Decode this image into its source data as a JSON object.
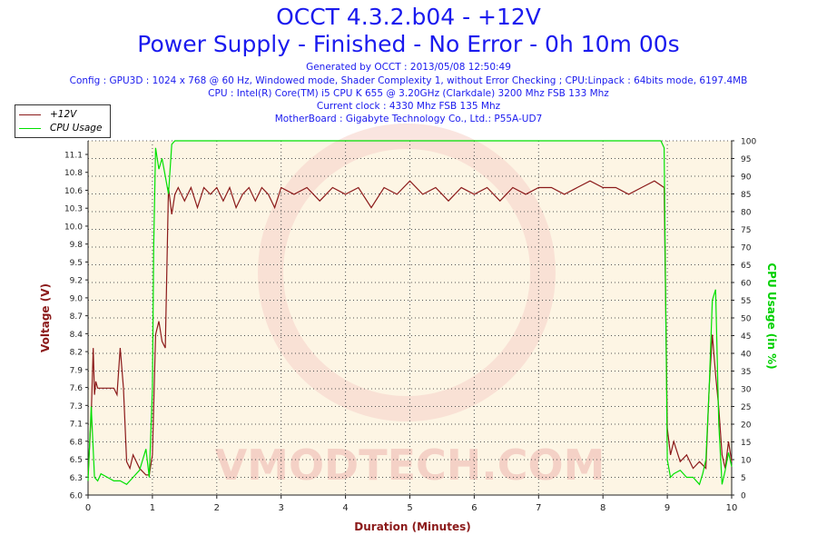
{
  "chart_data": {
    "type": "line",
    "title": "OCCT 4.3.2.b04 - +12V",
    "subtitle": "Power Supply - Finished - No Error - 0h 10m 00s",
    "info_lines": [
      "Generated by OCCT : 2013/05/08 12:50:49",
      "Config : GPU3D : 1024 x 768 @ 60 Hz, Windowed mode, Shader Complexity 1, without Error Checking ; CPU:Linpack : 64bits mode, 6197.4MB",
      "CPU : Intel(R) Core(TM) i5 CPU K 655 @ 3.20GHz (Clarkdale) 3200 Mhz FSB 133 Mhz",
      "Current clock : 4330 Mhz FSB 135 Mhz",
      "MotherBoard : Gigabyte Technology Co., Ltd.: P55A-UD7"
    ],
    "xlabel": "Duration (Minutes)",
    "ylabel": "Voltage (V)",
    "y2label": "CPU Usage (in %)",
    "xlim": [
      0,
      10
    ],
    "ylim": [
      6.0,
      11.3
    ],
    "y2lim": [
      0,
      100
    ],
    "x_ticks": [
      "0",
      "1",
      "2",
      "3",
      "4",
      "5",
      "6",
      "7",
      "8",
      "9",
      "10"
    ],
    "y_ticks": [
      "6.0",
      "6.3",
      "6.5",
      "6.8",
      "7.1",
      "7.3",
      "7.6",
      "7.9",
      "8.2",
      "8.4",
      "8.7",
      "9.0",
      "9.2",
      "9.5",
      "9.8",
      "10.0",
      "10.3",
      "10.6",
      "10.8",
      "11.1"
    ],
    "y2_ticks": [
      "0",
      "5",
      "10",
      "15",
      "20",
      "25",
      "30",
      "35",
      "40",
      "45",
      "50",
      "55",
      "60",
      "65",
      "70",
      "75",
      "80",
      "85",
      "90",
      "95",
      "100"
    ],
    "grid": true,
    "legend_position": "top-left",
    "watermark": "VMODTECH.COM",
    "series": [
      {
        "name": "+12V",
        "color": "#8b1a1a",
        "axis": "left",
        "x": [
          0.0,
          0.05,
          0.08,
          0.1,
          0.12,
          0.15,
          0.2,
          0.25,
          0.3,
          0.35,
          0.4,
          0.45,
          0.5,
          0.55,
          0.6,
          0.65,
          0.7,
          0.8,
          0.9,
          0.95,
          1.0,
          1.05,
          1.1,
          1.15,
          1.2,
          1.25,
          1.3,
          1.35,
          1.4,
          1.5,
          1.6,
          1.7,
          1.8,
          1.9,
          2.0,
          2.1,
          2.2,
          2.3,
          2.4,
          2.5,
          2.6,
          2.7,
          2.8,
          2.9,
          3.0,
          3.2,
          3.4,
          3.6,
          3.8,
          4.0,
          4.2,
          4.4,
          4.6,
          4.8,
          5.0,
          5.2,
          5.4,
          5.6,
          5.8,
          6.0,
          6.2,
          6.4,
          6.6,
          6.8,
          7.0,
          7.2,
          7.4,
          7.6,
          7.8,
          8.0,
          8.2,
          8.4,
          8.6,
          8.8,
          8.95,
          9.0,
          9.05,
          9.1,
          9.2,
          9.3,
          9.4,
          9.5,
          9.6,
          9.65,
          9.7,
          9.75,
          9.8,
          9.85,
          9.9,
          9.95,
          10.0
        ],
        "y": [
          6.3,
          7.2,
          8.2,
          7.5,
          7.7,
          7.6,
          7.6,
          7.6,
          7.6,
          7.6,
          7.6,
          7.5,
          8.2,
          7.6,
          6.5,
          6.4,
          6.6,
          6.4,
          6.3,
          6.3,
          6.6,
          8.4,
          8.6,
          8.3,
          8.2,
          10.6,
          10.2,
          10.5,
          10.6,
          10.4,
          10.6,
          10.3,
          10.6,
          10.5,
          10.6,
          10.4,
          10.6,
          10.3,
          10.5,
          10.6,
          10.4,
          10.6,
          10.5,
          10.3,
          10.6,
          10.5,
          10.6,
          10.4,
          10.6,
          10.5,
          10.6,
          10.3,
          10.6,
          10.5,
          10.7,
          10.5,
          10.6,
          10.4,
          10.6,
          10.5,
          10.6,
          10.4,
          10.6,
          10.5,
          10.6,
          10.6,
          10.5,
          10.6,
          10.7,
          10.6,
          10.6,
          10.5,
          10.6,
          10.7,
          10.6,
          7.0,
          6.6,
          6.8,
          6.5,
          6.6,
          6.4,
          6.5,
          6.4,
          7.6,
          8.4,
          7.8,
          7.3,
          6.6,
          6.4,
          6.8,
          6.5
        ]
      },
      {
        "name": "CPU Usage",
        "color": "#00e000",
        "axis": "right",
        "x": [
          0.0,
          0.05,
          0.1,
          0.15,
          0.2,
          0.3,
          0.4,
          0.5,
          0.6,
          0.7,
          0.8,
          0.9,
          0.95,
          1.0,
          1.02,
          1.05,
          1.1,
          1.15,
          1.2,
          1.25,
          1.3,
          1.35,
          1.4,
          2.0,
          3.0,
          4.0,
          5.0,
          6.0,
          7.0,
          8.0,
          8.9,
          8.95,
          9.0,
          9.05,
          9.1,
          9.2,
          9.3,
          9.4,
          9.5,
          9.55,
          9.6,
          9.65,
          9.7,
          9.75,
          9.8,
          9.85,
          9.9,
          9.95,
          10.0
        ],
        "y": [
          4,
          25,
          5,
          4,
          6,
          5,
          4,
          4,
          3,
          5,
          7,
          13,
          5,
          30,
          70,
          98,
          92,
          95,
          90,
          85,
          99,
          100,
          100,
          100,
          100,
          100,
          100,
          100,
          100,
          100,
          100,
          98,
          10,
          5,
          6,
          7,
          5,
          5,
          3,
          6,
          10,
          30,
          55,
          58,
          20,
          3,
          7,
          12,
          8
        ]
      }
    ]
  }
}
